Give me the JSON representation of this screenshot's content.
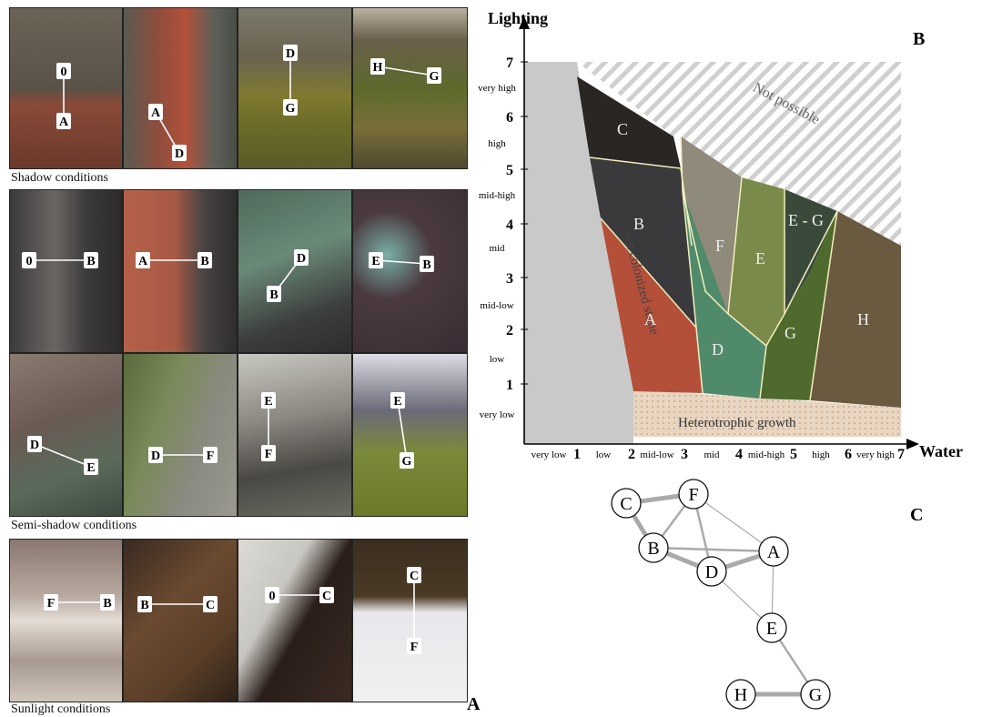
{
  "panel_letters": {
    "a": "A",
    "b": "B",
    "c": "C"
  },
  "panelA": {
    "shadow_label": "Shadow conditions",
    "semi_label": "Semi-shadow conditions",
    "sun_label": "Sunlight conditions",
    "photos": [
      {
        "from": "0",
        "to": "A"
      },
      {
        "from": "A",
        "to": "D"
      },
      {
        "from": "D",
        "to": "G"
      },
      {
        "from": "H",
        "to": "G"
      },
      {
        "from": "0",
        "to": "B"
      },
      {
        "from": "A",
        "to": "B"
      },
      {
        "from": "D",
        "to": "B"
      },
      {
        "from": "E",
        "to": "B"
      },
      {
        "from": "D",
        "to": "E"
      },
      {
        "from": "D",
        "to": "F"
      },
      {
        "from": "E",
        "to": "F"
      },
      {
        "from": "E",
        "to": "G"
      },
      {
        "from": "F",
        "to": "B"
      },
      {
        "from": "B",
        "to": "C"
      },
      {
        "from": "0",
        "to": "C"
      },
      {
        "from": "C",
        "to": "F"
      }
    ]
  },
  "panelB": {
    "y_axis_label": "Lighting",
    "x_axis_label": "Water",
    "y_ticks": [
      "1",
      "2",
      "3",
      "4",
      "5",
      "6",
      "7"
    ],
    "y_level_labels": [
      "very low",
      "low",
      "mid-low",
      "mid",
      "mid-high",
      "high",
      "very high"
    ],
    "x_ticks": [
      "1",
      "2",
      "3",
      "4",
      "5",
      "6",
      "7"
    ],
    "x_level_labels": [
      "very low",
      "low",
      "mid-low",
      "mid",
      "mid-high",
      "high",
      "very high"
    ],
    "region_labels": {
      "not_possible": "Not possible",
      "not_colonized": "not colonized stone",
      "heterotrophic": "Heterotrophic growth",
      "A": "A",
      "B": "B",
      "C": "C",
      "D": "D",
      "E": "E",
      "F": "F",
      "G": "G",
      "H": "H",
      "EG": "E - G"
    }
  },
  "panelC": {
    "nodes": [
      "A",
      "B",
      "C",
      "D",
      "E",
      "F",
      "G",
      "H"
    ],
    "edges": [
      {
        "a": "C",
        "b": "F",
        "weight": "strong"
      },
      {
        "a": "C",
        "b": "B",
        "weight": "strong"
      },
      {
        "a": "F",
        "b": "B",
        "weight": "medium"
      },
      {
        "a": "F",
        "b": "D",
        "weight": "medium"
      },
      {
        "a": "F",
        "b": "A",
        "weight": "weak"
      },
      {
        "a": "B",
        "b": "D",
        "weight": "strong"
      },
      {
        "a": "B",
        "b": "A",
        "weight": "medium"
      },
      {
        "a": "D",
        "b": "A",
        "weight": "strong"
      },
      {
        "a": "D",
        "b": "E",
        "weight": "weak"
      },
      {
        "a": "A",
        "b": "E",
        "weight": "weak"
      },
      {
        "a": "E",
        "b": "G",
        "weight": "medium"
      },
      {
        "a": "H",
        "b": "G",
        "weight": "strong"
      }
    ]
  },
  "colors": {
    "A": "#b4503a",
    "B": "#3a3a3c",
    "C": "#2a2624",
    "D": "#4f8a6a",
    "E": "#7a8a4a",
    "F": "#8f8a7a",
    "G": "#4e6a2c",
    "H": "#6a5a40"
  }
}
